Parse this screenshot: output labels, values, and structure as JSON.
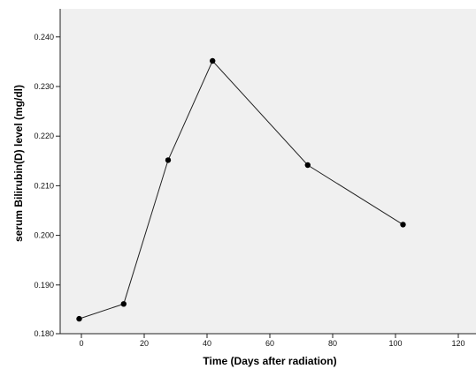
{
  "chart_data": {
    "type": "line",
    "title": "",
    "xlabel": "Time (Days after radiation)",
    "ylabel": "serum Bilirubin(D) level (mg/dl)",
    "x": [
      0,
      14,
      28,
      42,
      72,
      102
    ],
    "series": [
      {
        "values": [
          0.183,
          0.186,
          0.215,
          0.235,
          0.214,
          0.202
        ]
      }
    ],
    "xlim": [
      -6,
      125
    ],
    "ylim": [
      0.18,
      0.2455
    ],
    "x_ticks": [
      "0",
      "20",
      "40",
      "60",
      "80",
      "100",
      "120"
    ],
    "y_ticks": [
      "0.180",
      "0.190",
      "0.200",
      "0.210",
      "0.220",
      "0.230",
      "0.240"
    ],
    "grid": false,
    "legend": "none",
    "colors": {
      "plot_background": "#f0f0f0",
      "line": "#222222",
      "marker": "#000000",
      "axis": "#222222"
    }
  }
}
